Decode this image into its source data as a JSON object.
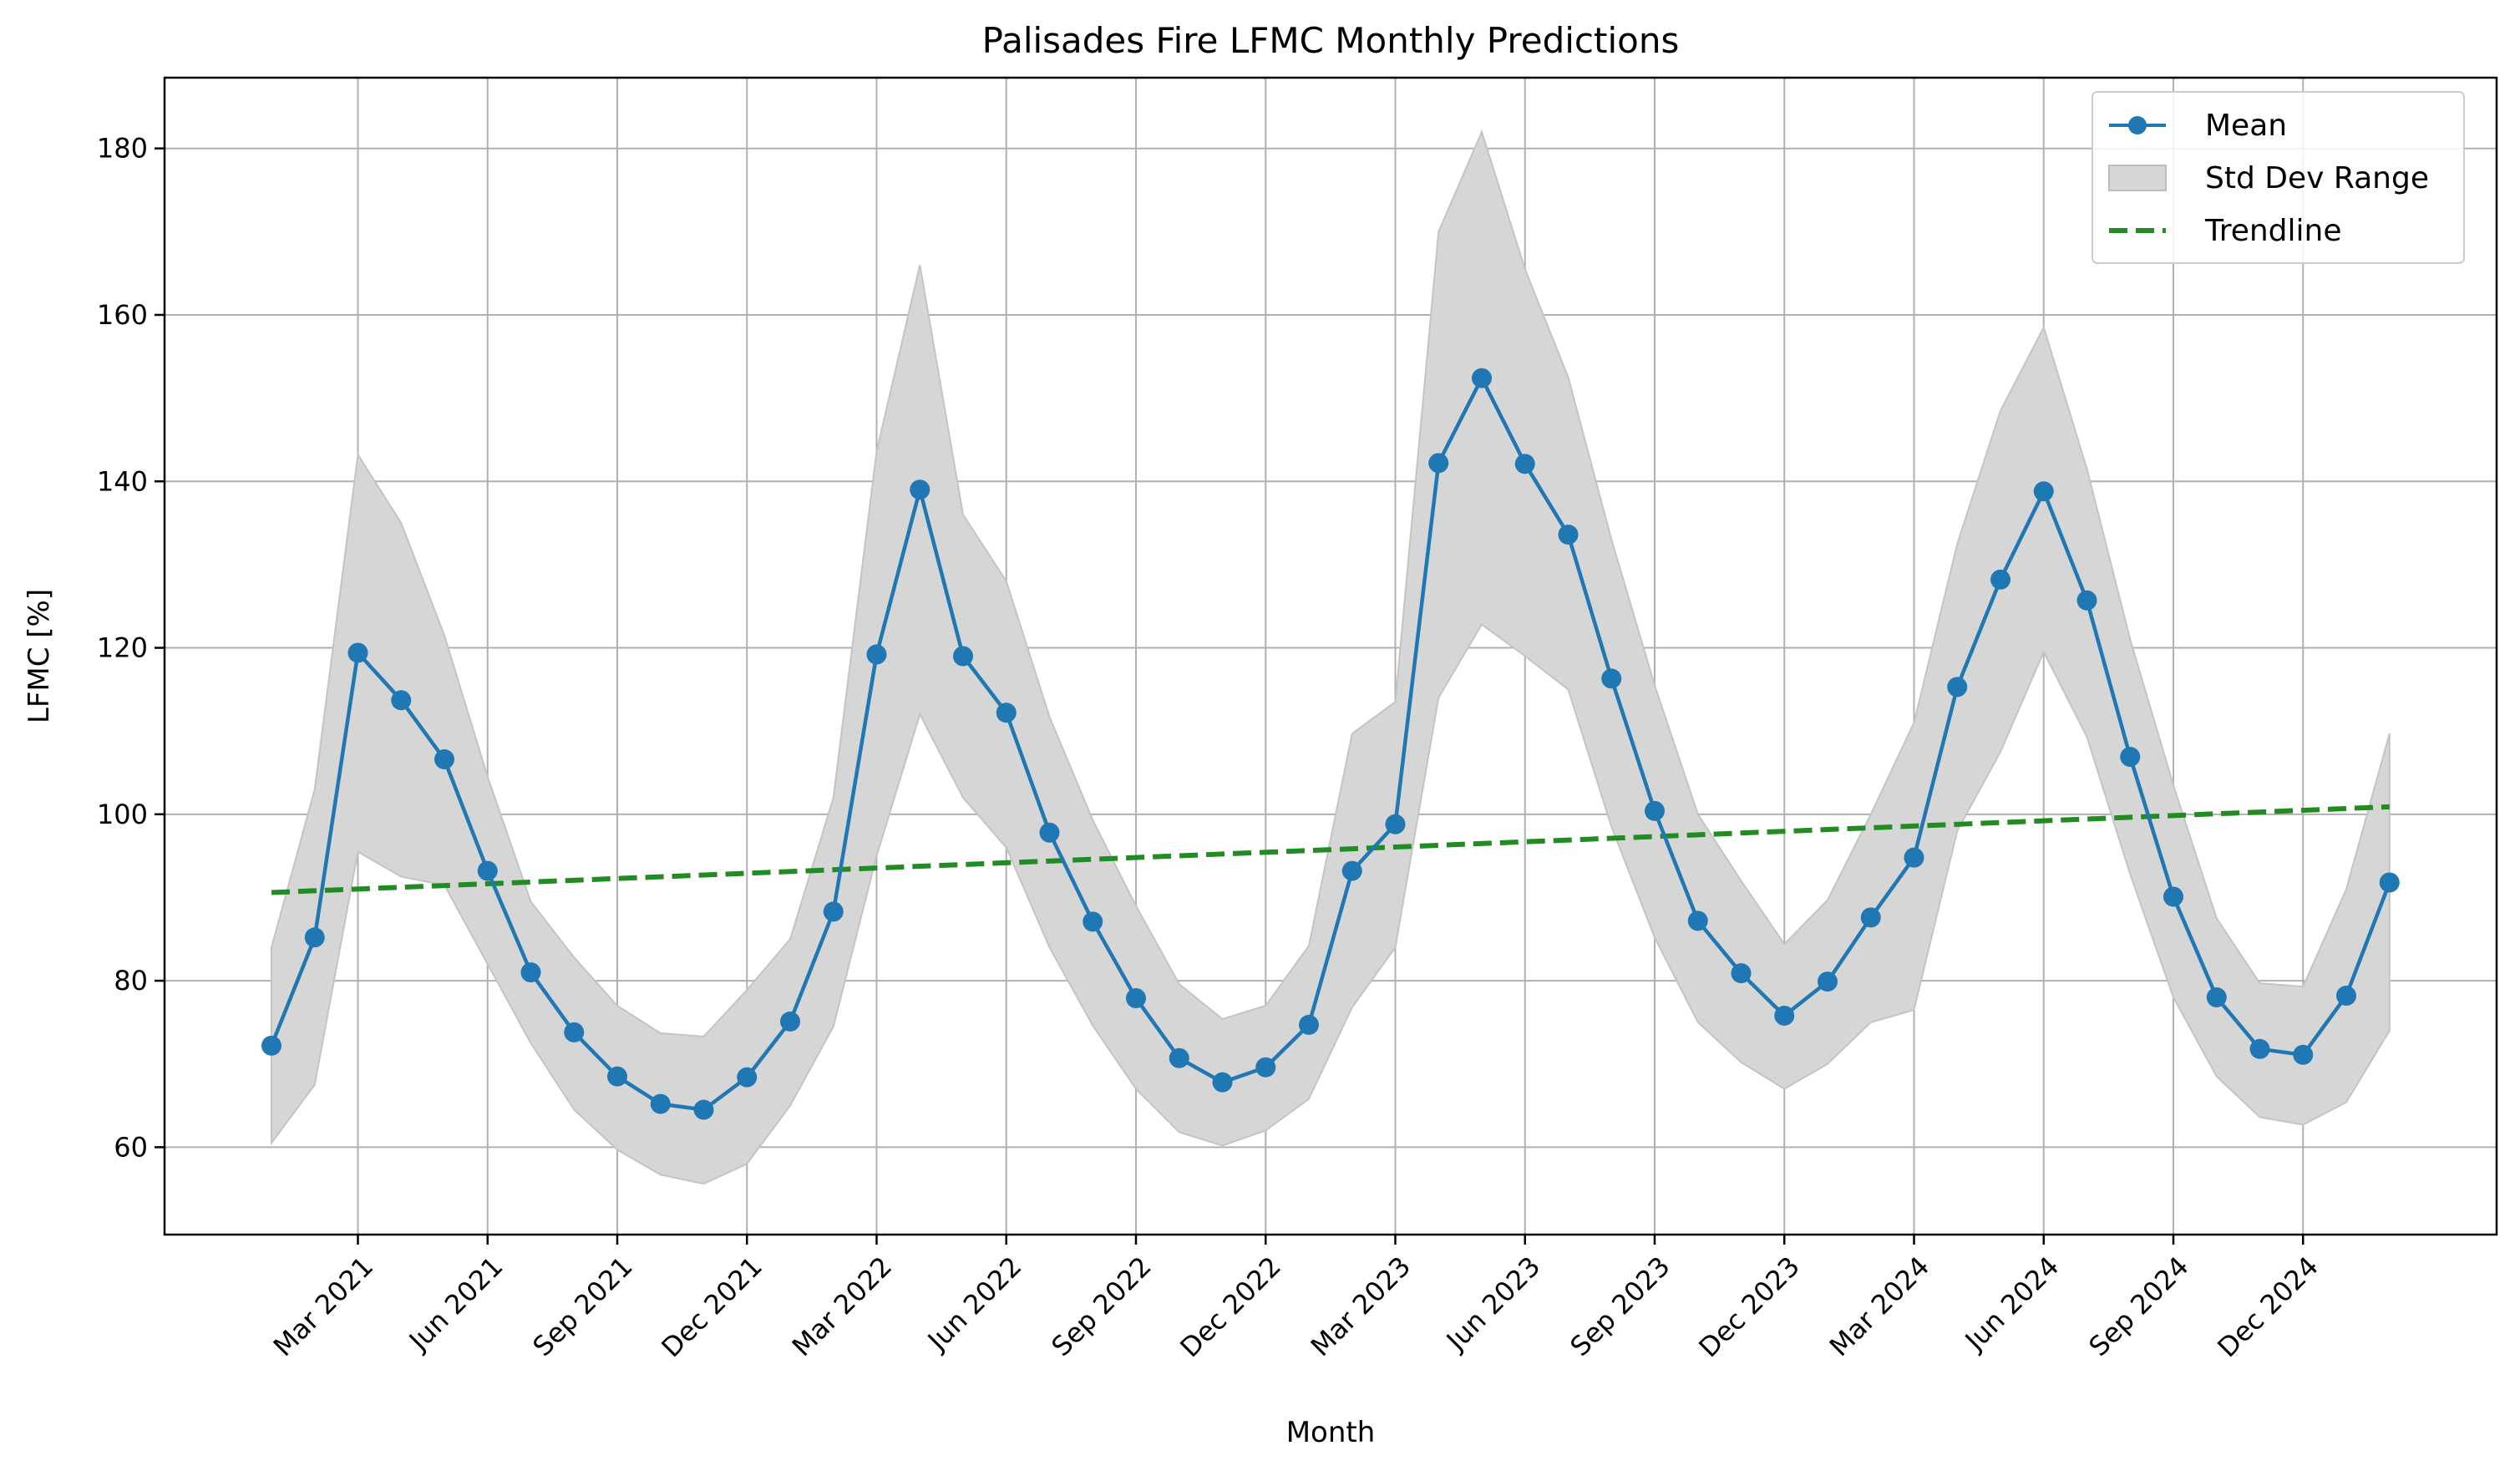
{
  "chart_data": {
    "type": "line",
    "title": "Palisades Fire LFMC Monthly Predictions",
    "xlabel": "Month",
    "ylabel": "LFMC [%]",
    "ylim": [
      49.5,
      188.5
    ],
    "yticks": [
      60,
      80,
      100,
      120,
      140,
      160,
      180
    ],
    "months": [
      "Jan 2021",
      "Feb 2021",
      "Mar 2021",
      "Apr 2021",
      "May 2021",
      "Jun 2021",
      "Jul 2021",
      "Aug 2021",
      "Sep 2021",
      "Oct 2021",
      "Nov 2021",
      "Dec 2021",
      "Jan 2022",
      "Feb 2022",
      "Mar 2022",
      "Apr 2022",
      "May 2022",
      "Jun 2022",
      "Jul 2022",
      "Aug 2022",
      "Sep 2022",
      "Oct 2022",
      "Nov 2022",
      "Dec 2022",
      "Jan 2023",
      "Feb 2023",
      "Mar 2023",
      "Apr 2023",
      "May 2023",
      "Jun 2023",
      "Jul 2023",
      "Aug 2023",
      "Sep 2023",
      "Oct 2023",
      "Nov 2023",
      "Dec 2023",
      "Jan 2024",
      "Feb 2024",
      "Mar 2024",
      "Apr 2024",
      "May 2024",
      "Jun 2024",
      "Jul 2024",
      "Aug 2024",
      "Sep 2024",
      "Oct 2024",
      "Nov 2024",
      "Dec 2024",
      "Jan 2025",
      "Feb 2025"
    ],
    "xticks": [
      "Mar 2021",
      "Jun 2021",
      "Sep 2021",
      "Dec 2021",
      "Mar 2022",
      "Jun 2022",
      "Sep 2022",
      "Dec 2022",
      "Mar 2023",
      "Jun 2023",
      "Sep 2023",
      "Dec 2023",
      "Mar 2024",
      "Jun 2024",
      "Sep 2024",
      "Dec 2024"
    ],
    "series": [
      {
        "name": "Mean",
        "color": "#1f77b4",
        "values": [
          72.2,
          85.2,
          119.4,
          113.7,
          106.6,
          93.2,
          81.0,
          73.8,
          68.5,
          65.2,
          64.5,
          68.4,
          75.1,
          88.3,
          119.2,
          139.0,
          119.0,
          112.2,
          97.8,
          87.1,
          77.9,
          70.7,
          67.8,
          69.6,
          74.7,
          93.2,
          98.8,
          142.2,
          152.4,
          142.1,
          133.6,
          116.3,
          100.4,
          87.2,
          80.9,
          75.8,
          79.9,
          87.6,
          94.8,
          115.3,
          128.2,
          138.8,
          125.7,
          106.9,
          90.1,
          78.0,
          71.8,
          71.1,
          78.2,
          91.8
        ]
      },
      {
        "name": "Std Dev Range",
        "color": "#d6d6d6",
        "upper": [
          84.0,
          103.0,
          143.2,
          135.0,
          121.5,
          104.5,
          89.5,
          82.8,
          77.0,
          73.7,
          73.3,
          78.9,
          85.0,
          102.0,
          143.6,
          166.0,
          136.0,
          128.0,
          111.7,
          99.3,
          89.0,
          79.6,
          75.4,
          77.0,
          84.2,
          109.7,
          113.5,
          170.0,
          182.0,
          165.5,
          152.5,
          133.0,
          115.5,
          100.0,
          92.0,
          84.4,
          89.7,
          100.0,
          111.0,
          132.5,
          148.5,
          158.5,
          141.5,
          121.0,
          103.5,
          87.5,
          79.7,
          79.3,
          91.0,
          109.7
        ],
        "lower": [
          60.5,
          67.5,
          95.5,
          92.5,
          91.5,
          82.0,
          72.5,
          64.5,
          59.7,
          56.7,
          55.6,
          58.0,
          65.0,
          74.5,
          95.0,
          112.0,
          102.0,
          96.0,
          84.0,
          74.6,
          67.0,
          61.8,
          60.2,
          62.0,
          65.8,
          76.8,
          84.0,
          114.0,
          122.8,
          119.0,
          115.0,
          98.5,
          85.2,
          75.0,
          70.2,
          67.0,
          70.0,
          75.0,
          76.5,
          98.0,
          107.5,
          119.5,
          109.3,
          92.8,
          78.0,
          68.5,
          63.6,
          62.7,
          65.4,
          74.0
        ]
      },
      {
        "name": "Trendline",
        "color": "#228b22",
        "start": 90.6,
        "end": 100.9
      }
    ],
    "grid": true,
    "legend": "top-right"
  }
}
